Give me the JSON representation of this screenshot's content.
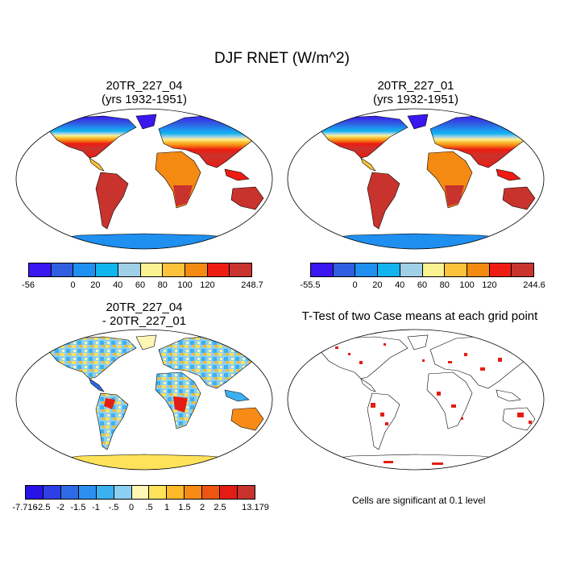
{
  "title": "DJF RNET (W/m^2)",
  "panels": {
    "top_left": {
      "title1": "20TR_227_04",
      "title2": "(yrs 1932-1951)"
    },
    "top_right": {
      "title1": "20TR_227_01",
      "title2": "(yrs 1932-1951)"
    },
    "bottom_left": {
      "title1": "20TR_227_04",
      "title2": "- 20TR_227_01"
    },
    "bottom_right": {
      "title1": "T-Test of two Case means at each grid point"
    }
  },
  "colorbars": {
    "left": {
      "colors": [
        "#3a17f0",
        "#2f5fe0",
        "#1f8ff0",
        "#12b4ee",
        "#9fd0e8",
        "#fbf292",
        "#fbc23a",
        "#f58a12",
        "#ee1c12",
        "#c9332d"
      ],
      "labels": [
        "-56",
        "0",
        "20",
        "40",
        "60",
        "80",
        "100",
        "120",
        "248.7"
      ]
    },
    "right": {
      "colors": [
        "#3a17f0",
        "#2f5fe0",
        "#1f8ff0",
        "#12b4ee",
        "#9fd0e8",
        "#fbf292",
        "#fbc23a",
        "#f58a12",
        "#ee1c12",
        "#c9332d"
      ],
      "labels": [
        "-55.5",
        "0",
        "20",
        "40",
        "60",
        "80",
        "100",
        "120",
        "244.6"
      ]
    },
    "diff": {
      "colors": [
        "#2812e8",
        "#2f3fe6",
        "#2e6ae6",
        "#2d8ff0",
        "#3cb1f2",
        "#8ccff2",
        "#fdf6b4",
        "#fde25a",
        "#fdb92a",
        "#f88a16",
        "#ee5512",
        "#e41d14",
        "#c9332d"
      ],
      "labels": [
        "-7.716",
        "-2.5",
        "-2",
        "-1.5",
        "-1",
        "-.5",
        "0",
        ".5",
        "1",
        "1.5",
        "2",
        "2.5",
        "13.179"
      ]
    }
  },
  "significance_note": "Cells are significant at 0.1 level",
  "colors": {
    "ocean": "#ffffff",
    "outline": "#000000",
    "significant": "#e41d14"
  }
}
